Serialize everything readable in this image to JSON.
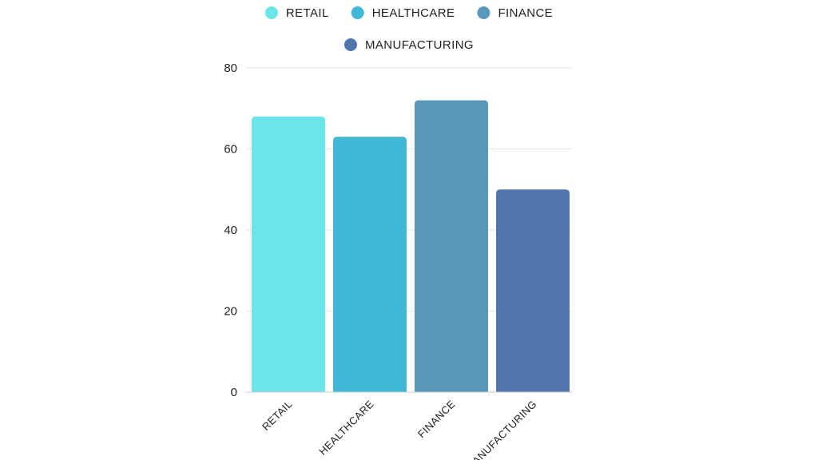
{
  "chart_data": {
    "type": "bar",
    "categories": [
      "RETAIL",
      "HEALTHCARE",
      "FINANCE",
      "MANUFACTURING"
    ],
    "values": [
      68,
      63,
      72,
      50
    ],
    "colors": [
      "#6ce5e8",
      "#41b8d5",
      "#5a98bb",
      "#5276ad"
    ],
    "legend": [
      "RETAIL",
      "HEALTHCARE",
      "FINANCE",
      "MANUFACTURING"
    ],
    "legend_position": "top",
    "ylim": [
      0,
      80
    ],
    "yticks": [
      0,
      20,
      40,
      60,
      80
    ],
    "grid": true,
    "title": "",
    "xlabel": "",
    "ylabel": ""
  }
}
